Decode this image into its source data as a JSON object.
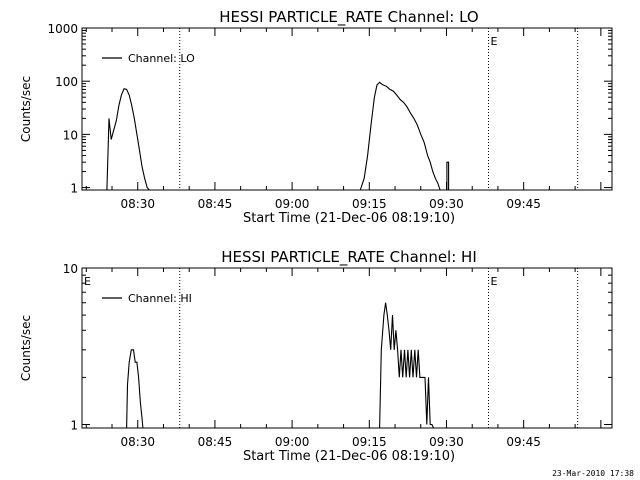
{
  "footer": {
    "timestamp": "23-Mar-2010 17:38"
  },
  "colors": {
    "line": "#000000",
    "background": "#ffffff"
  },
  "chart_data": [
    {
      "type": "line",
      "title": "HESSI PARTICLE_RATE Channel: LO",
      "xlabel": "Start Time (21-Dec-06 08:19:10)",
      "ylabel": "Counts/sec",
      "y_scale": "log",
      "ylim": [
        0.9,
        1000
      ],
      "xlim": [
        "08:19:10",
        "10:02:10"
      ],
      "x_ticks": [
        "08:30",
        "08:45",
        "09:00",
        "09:15",
        "09:30",
        "09:45"
      ],
      "y_ticks": [
        "1",
        "10",
        "100",
        "1000"
      ],
      "legend": {
        "position": "top-left",
        "entries": [
          "Channel: LO"
        ]
      },
      "markers": [
        {
          "label": "",
          "x": "08:38:10"
        },
        {
          "label": "E",
          "x": "09:38:10"
        },
        {
          "label": "",
          "x": "09:55:30"
        }
      ],
      "series": [
        {
          "name": "Channel: LO",
          "segments": [
            {
              "x": [
                "08:24:00",
                "08:24:25",
                "08:24:50",
                "08:25:20",
                "08:25:50",
                "08:26:20",
                "08:26:50",
                "08:27:20",
                "08:27:50",
                "08:28:20",
                "08:28:50",
                "08:29:20",
                "08:29:50",
                "08:30:20",
                "08:30:50",
                "08:31:20",
                "08:31:50",
                "08:32:15"
              ],
              "y": [
                0.9,
                20,
                8,
                12,
                18,
                35,
                55,
                72,
                70,
                55,
                35,
                20,
                10,
                5,
                2.5,
                1.5,
                1,
                0.9
              ]
            },
            {
              "x": [
                "09:13:15",
                "09:14:00",
                "09:14:40",
                "09:15:20",
                "09:16:00",
                "09:16:30",
                "09:17:00",
                "09:17:40",
                "09:18:20",
                "09:19:00",
                "09:19:40",
                "09:20:20",
                "09:21:00",
                "09:21:40",
                "09:22:20",
                "09:23:00",
                "09:23:40",
                "09:24:20",
                "09:25:00",
                "09:25:40",
                "09:26:20",
                "09:26:50",
                "09:27:20",
                "09:27:50",
                "09:28:20",
                "09:28:45"
              ],
              "y": [
                0.9,
                1.5,
                4,
                15,
                50,
                85,
                95,
                85,
                80,
                70,
                65,
                55,
                45,
                40,
                33,
                25,
                20,
                15,
                10,
                7,
                4,
                3,
                2,
                1.5,
                1.2,
                0.9
              ]
            },
            {
              "x": [
                "09:30:05",
                "09:30:05",
                "09:30:25",
                "09:30:25"
              ],
              "y": [
                0.9,
                3,
                3,
                0.9
              ]
            }
          ]
        }
      ]
    },
    {
      "type": "line",
      "title": "HESSI PARTICLE_RATE Channel: HI",
      "xlabel": "Start Time (21-Dec-06 08:19:10)",
      "ylabel": "Counts/sec",
      "y_scale": "log",
      "ylim": [
        0.95,
        10
      ],
      "xlim": [
        "08:19:10",
        "10:02:10"
      ],
      "x_ticks": [
        "08:30",
        "08:45",
        "09:00",
        "09:15",
        "09:30",
        "09:45"
      ],
      "y_ticks": [
        "1",
        "10"
      ],
      "legend": {
        "position": "top-left",
        "entries": [
          "Channel: HI"
        ]
      },
      "markers": [
        {
          "label": "E",
          "x": "08:19:10"
        },
        {
          "label": "",
          "x": "08:38:10"
        },
        {
          "label": "E",
          "x": "09:38:10"
        },
        {
          "label": "",
          "x": "09:55:30"
        }
      ],
      "series": [
        {
          "name": "Channel: HI",
          "segments": [
            {
              "x": [
                "08:27:50",
                "08:28:00",
                "08:28:20",
                "08:28:45",
                "08:29:10",
                "08:29:30",
                "08:29:50",
                "08:30:10",
                "08:30:30",
                "08:30:50",
                "08:31:00"
              ],
              "y": [
                0.95,
                1.8,
                2.5,
                3,
                3,
                2.5,
                2.5,
                2,
                1.4,
                1.1,
                0.95
              ]
            },
            {
              "x": [
                "09:17:00",
                "09:17:20",
                "09:17:50",
                "09:18:10",
                "09:18:30",
                "09:18:50",
                "09:19:10",
                "09:19:30",
                "09:19:50",
                "09:20:10",
                "09:20:30",
                "09:20:50",
                "09:21:10",
                "09:21:30",
                "09:21:50",
                "09:22:10",
                "09:22:30",
                "09:22:50",
                "09:23:10",
                "09:23:30",
                "09:23:50",
                "09:24:10",
                "09:24:30",
                "09:24:50",
                "09:25:10",
                "09:25:30",
                "09:25:50",
                "09:26:10",
                "09:26:30",
                "09:26:50",
                "09:27:10",
                "09:27:30"
              ],
              "y": [
                0.95,
                3,
                5,
                6,
                5,
                4,
                3,
                5,
                3,
                4,
                3,
                2,
                3,
                2,
                3,
                2,
                3,
                2,
                3,
                2,
                3,
                2,
                3,
                2,
                2,
                2,
                2,
                1,
                2,
                1,
                1,
                0.95
              ]
            }
          ]
        }
      ]
    }
  ]
}
